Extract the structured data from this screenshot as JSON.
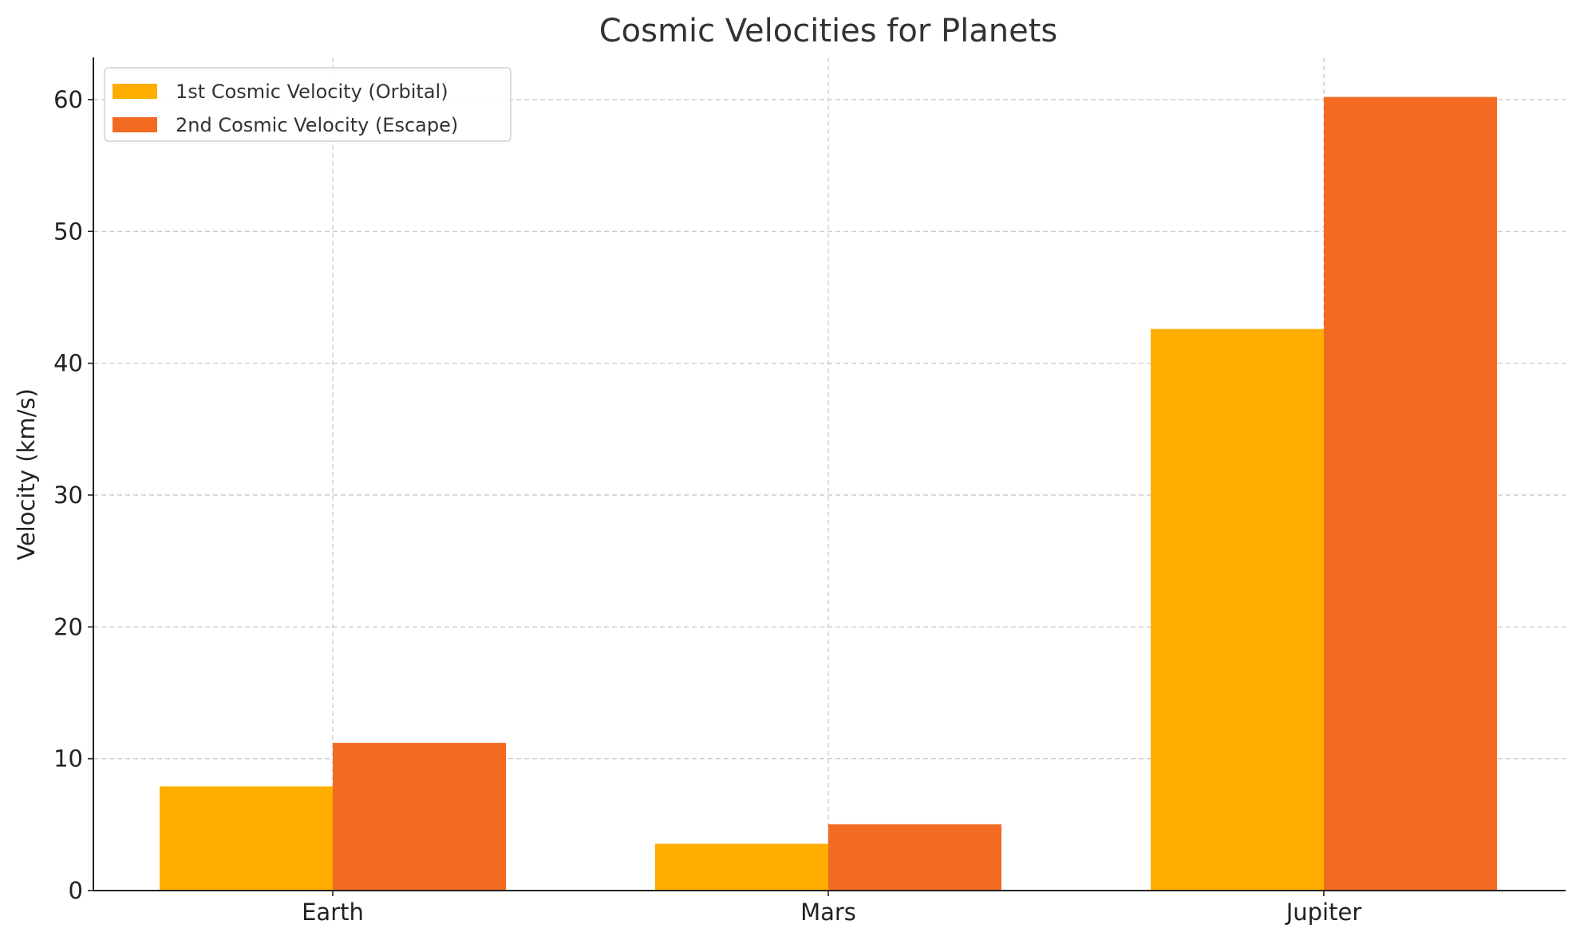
{
  "chart_data": {
    "type": "bar",
    "title": "Cosmic Velocities for Planets",
    "xlabel": "",
    "ylabel": "Velocity (km/s)",
    "categories": [
      "Earth",
      "Mars",
      "Jupiter"
    ],
    "series": [
      {
        "name": "1st Cosmic Velocity (Orbital)",
        "color": "#FFAE00",
        "values": [
          7.9,
          3.55,
          42.6
        ]
      },
      {
        "name": "2nd Cosmic Velocity (Escape)",
        "color": "#F36B22",
        "values": [
          11.2,
          5.03,
          60.2
        ]
      }
    ],
    "ylim": [
      0,
      63.2
    ],
    "yticks": [
      0,
      10,
      20,
      30,
      40,
      50,
      60
    ],
    "grid": true,
    "legend_position": "top-left"
  }
}
